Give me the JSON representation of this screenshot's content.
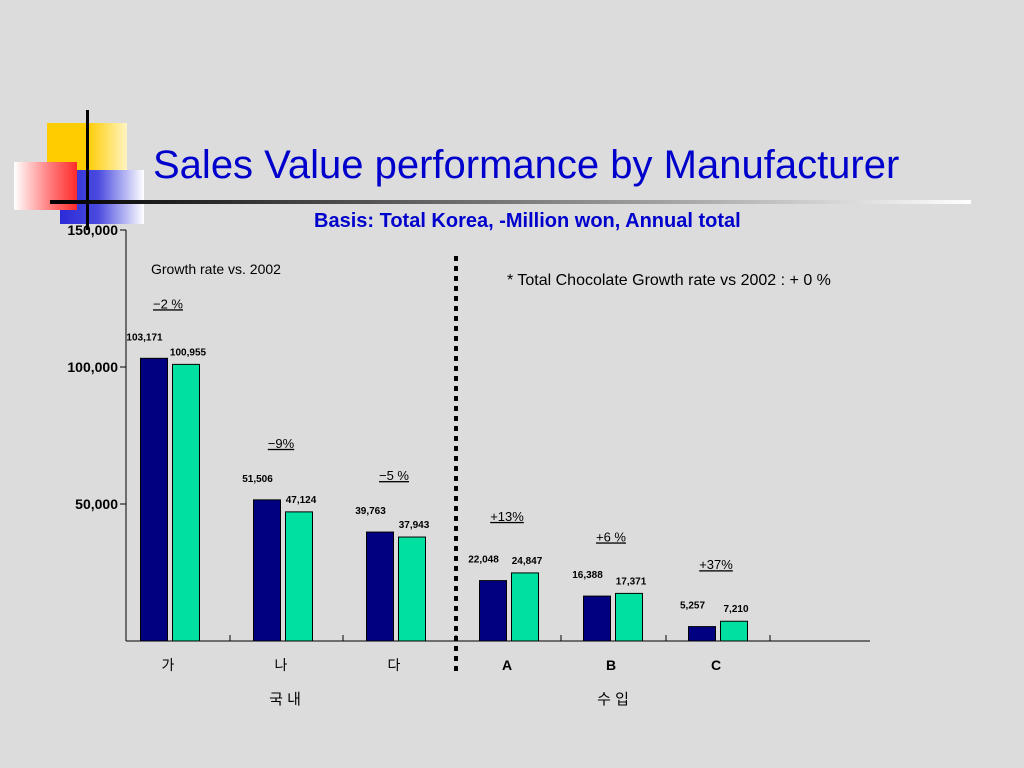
{
  "slide": {
    "title": "Sales Value performance by Manufacturer",
    "subtitle": "Basis: Total Korea, -Million won, Annual total",
    "growth_note": "Growth rate vs. 2002",
    "total_note": "* Total  Chocolate Growth rate vs 2002 : + 0 %"
  },
  "colors": {
    "title": "#0000cc",
    "series_2002": "#000080",
    "series_2003": "#00e0a0",
    "background": "#dcdcdc"
  },
  "chart_data": {
    "type": "bar",
    "categories": [
      "가",
      "나",
      "다",
      "A",
      "B",
      "C"
    ],
    "series": [
      {
        "values": [
          103171,
          51506,
          39763,
          22048,
          16388,
          5257
        ]
      },
      {
        "values": [
          100955,
          47124,
          37943,
          24847,
          17371,
          7210
        ]
      }
    ],
    "value_labels": [
      [
        "103,171",
        "51,506",
        "39,763",
        "22,048",
        "16,388",
        "5,257"
      ],
      [
        "100,955",
        "47,124",
        "37,943",
        "24,847",
        "17,371",
        "7,210"
      ]
    ],
    "growth_labels": [
      "−2 %",
      "−9%",
      "−5 %",
      "+13%",
      "+6 %",
      "+37%"
    ],
    "yticks": [
      {
        "value": 50000,
        "label": "50,000"
      },
      {
        "value": 100000,
        "label": "100,000"
      },
      {
        "value": 150000,
        "label": "150,000"
      }
    ],
    "ylim": [
      0,
      150000
    ],
    "groups": [
      {
        "label": "국 내",
        "categories": [
          "가",
          "나",
          "다"
        ]
      },
      {
        "label": "수 입",
        "categories": [
          "A",
          "B",
          "C"
        ]
      }
    ]
  }
}
